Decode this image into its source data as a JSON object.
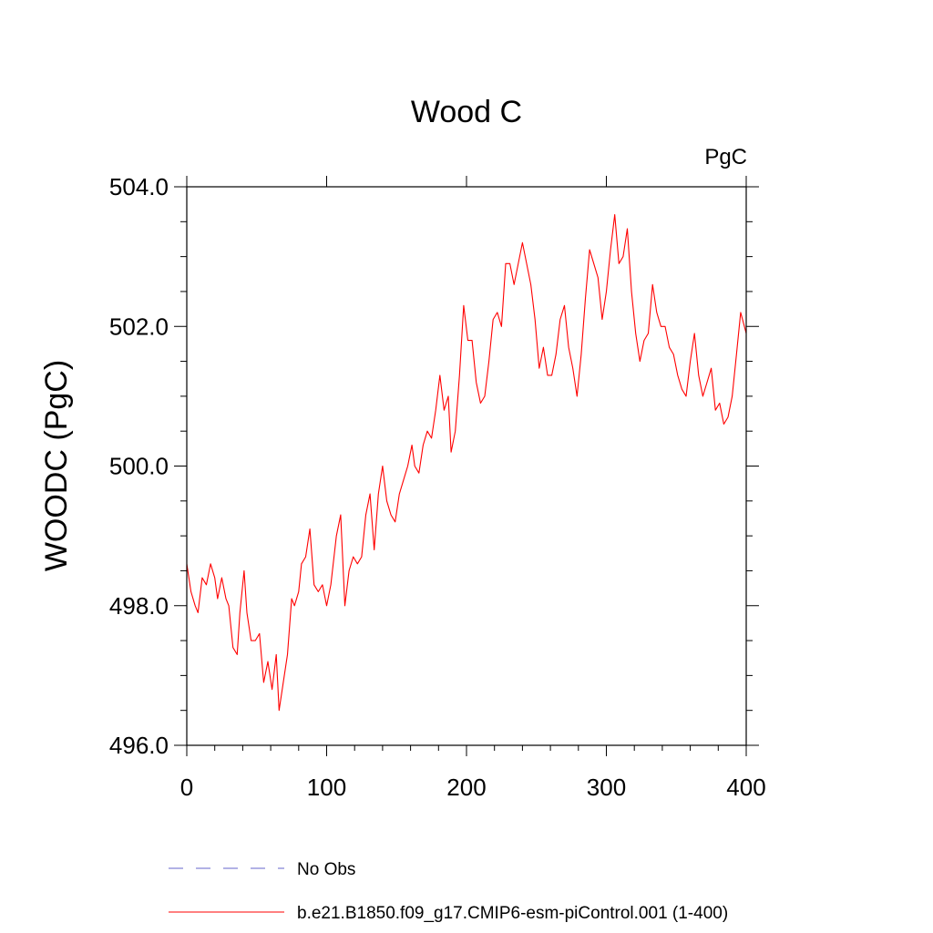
{
  "chart_data": {
    "type": "line",
    "title": "Wood C",
    "units_label": "PgC",
    "xlabel": "",
    "ylabel": "WOODC  (PgC)",
    "xlim": [
      0,
      400
    ],
    "ylim": [
      496.0,
      504.0
    ],
    "x_ticks": [
      0,
      100,
      200,
      300,
      400
    ],
    "x_tick_labels": [
      "0",
      "100",
      "200",
      "300",
      "400"
    ],
    "y_ticks": [
      496.0,
      498.0,
      500.0,
      502.0,
      504.0
    ],
    "y_tick_labels": [
      "496.0",
      "498.0",
      "500.0",
      "502.0",
      "504.0"
    ],
    "grid": false,
    "legend_position": "bottom",
    "series": [
      {
        "name": "No Obs",
        "color": "#6666cc",
        "dash": "dashed",
        "x": [],
        "y": []
      },
      {
        "name": "b.e21.B1850.f09_g17.CMIP6-esm-piControl.001 (1-400)",
        "color": "#ff0000",
        "dash": "solid",
        "x": [
          0,
          3,
          6,
          8,
          11,
          14,
          17,
          20,
          22,
          25,
          28,
          30,
          33,
          36,
          38,
          41,
          43,
          46,
          49,
          52,
          55,
          58,
          61,
          64,
          66,
          69,
          72,
          75,
          77,
          80,
          82,
          85,
          88,
          91,
          94,
          97,
          100,
          103,
          107,
          110,
          113,
          116,
          119,
          122,
          125,
          128,
          131,
          134,
          137,
          140,
          143,
          146,
          149,
          152,
          155,
          158,
          161,
          163,
          166,
          169,
          172,
          175,
          178,
          181,
          184,
          187,
          189,
          192,
          195,
          198,
          201,
          204,
          207,
          210,
          213,
          216,
          219,
          222,
          225,
          228,
          231,
          234,
          237,
          240,
          243,
          246,
          249,
          252,
          255,
          258,
          261,
          264,
          267,
          270,
          273,
          276,
          279,
          282,
          285,
          288,
          291,
          294,
          297,
          300,
          303,
          306,
          309,
          312,
          315,
          318,
          321,
          324,
          327,
          330,
          333,
          336,
          339,
          342,
          345,
          348,
          351,
          354,
          357,
          360,
          363,
          366,
          369,
          372,
          375,
          378,
          381,
          384,
          387,
          390,
          393,
          396,
          400
        ],
        "y": [
          498.6,
          498.2,
          498.0,
          497.9,
          498.4,
          498.3,
          498.6,
          498.4,
          498.1,
          498.4,
          498.1,
          498.0,
          497.4,
          497.3,
          497.9,
          498.5,
          497.9,
          497.5,
          497.5,
          497.6,
          496.9,
          497.2,
          496.8,
          497.3,
          496.5,
          496.9,
          497.3,
          498.1,
          498.0,
          498.2,
          498.6,
          498.7,
          499.1,
          498.3,
          498.2,
          498.3,
          498.0,
          498.3,
          499.0,
          499.3,
          498.0,
          498.5,
          498.7,
          498.6,
          498.7,
          499.3,
          499.6,
          498.8,
          499.6,
          500.0,
          499.5,
          499.3,
          499.2,
          499.6,
          499.8,
          500.0,
          500.3,
          500.0,
          499.9,
          500.3,
          500.5,
          500.4,
          500.8,
          501.3,
          500.8,
          501.0,
          500.2,
          500.5,
          501.3,
          502.3,
          501.8,
          501.8,
          501.2,
          500.9,
          501.0,
          501.5,
          502.1,
          502.2,
          502.0,
          502.9,
          502.9,
          502.6,
          502.9,
          503.2,
          502.9,
          502.6,
          502.1,
          501.4,
          501.7,
          501.3,
          501.3,
          501.6,
          502.1,
          502.3,
          501.7,
          501.4,
          501.0,
          501.6,
          502.4,
          503.1,
          502.9,
          502.7,
          502.1,
          502.5,
          503.1,
          503.6,
          502.9,
          503.0,
          503.4,
          502.5,
          501.9,
          501.5,
          501.8,
          501.9,
          502.6,
          502.2,
          502.0,
          502.0,
          501.7,
          501.6,
          501.3,
          501.1,
          501.0,
          501.5,
          501.9,
          501.3,
          501.0,
          501.2,
          501.4,
          500.8,
          500.9,
          500.6,
          500.7,
          501.0,
          501.6,
          502.2,
          501.9
        ]
      }
    ]
  }
}
